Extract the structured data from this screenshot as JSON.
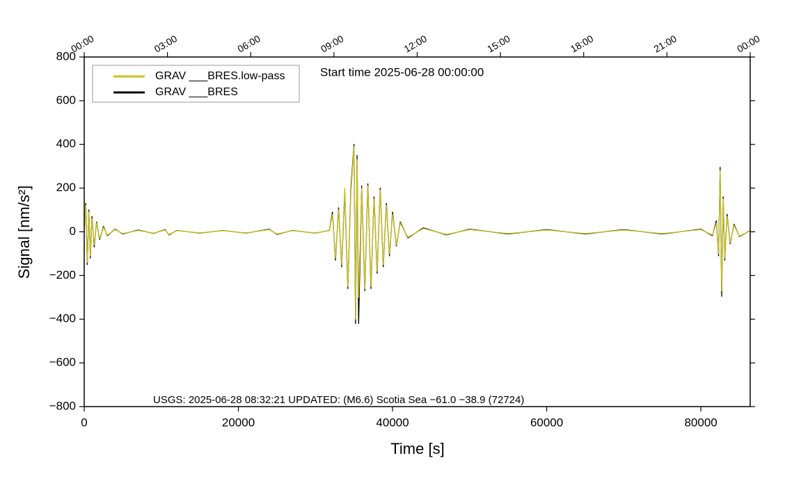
{
  "chart_data": {
    "type": "line",
    "ylabel": "Signal [nm/s²]",
    "xlabel": "Time [s]",
    "annotations": [
      "Start time 2025-06-28 00:00:00",
      "USGS: 2025-06-28 08:32:21 UPDATED: (M6.6) Scotia Sea −61.0 −38.9 (72724)"
    ],
    "xlim": [
      0,
      86400
    ],
    "ylim": [
      -800,
      800
    ],
    "xticks": [
      0,
      20000,
      40000,
      60000,
      80000
    ],
    "yticks": [
      {
        "value": -800,
        "label": "−800"
      },
      {
        "value": -600,
        "label": "−600"
      },
      {
        "value": -400,
        "label": "−400"
      },
      {
        "value": -200,
        "label": "−200"
      },
      0,
      200,
      400,
      600,
      800
    ],
    "top_ticks": [
      {
        "value": 0,
        "label": "00:00"
      },
      {
        "value": 10800,
        "label": "03:00"
      },
      {
        "value": 21600,
        "label": "06:00"
      },
      {
        "value": 32400,
        "label": "09:00"
      },
      {
        "value": 43200,
        "label": "12:00"
      },
      {
        "value": 54000,
        "label": "15:00"
      },
      {
        "value": 64800,
        "label": "18:00"
      },
      {
        "value": 75600,
        "label": "21:00"
      },
      {
        "value": 86400,
        "label": "00:00"
      }
    ],
    "legend": "upper left",
    "x": [
      0,
      200,
      400,
      600,
      800,
      1000,
      1300,
      1600,
      2000,
      2500,
      3000,
      4000,
      5000,
      7000,
      9000,
      10500,
      11000,
      12000,
      15000,
      18000,
      21000,
      24000,
      25000,
      27000,
      30000,
      31800,
      32200,
      32600,
      33000,
      33400,
      33800,
      34200,
      34600,
      35000,
      35200,
      35400,
      35600,
      36000,
      36400,
      36800,
      37200,
      37600,
      38000,
      38400,
      38800,
      39200,
      39600,
      40000,
      40500,
      41000,
      42000,
      44000,
      47000,
      50000,
      55000,
      60000,
      65000,
      70000,
      75000,
      80000,
      81500,
      82000,
      82300,
      82500,
      82700,
      82900,
      83100,
      83400,
      83800,
      84300,
      85000,
      86400
    ],
    "series": [
      {
        "name": "GRAV ___BRES.low-pass",
        "color": "#c9c21c",
        "values": [
          0,
          120,
          -140,
          90,
          -110,
          60,
          -60,
          40,
          -30,
          20,
          -15,
          10,
          -8,
          6,
          -6,
          8,
          -12,
          5,
          -5,
          5,
          -5,
          10,
          -10,
          5,
          -5,
          5,
          80,
          -120,
          100,
          -150,
          200,
          -250,
          180,
          390,
          -400,
          330,
          -300,
          200,
          -260,
          210,
          -250,
          150,
          -180,
          190,
          -150,
          120,
          -100,
          80,
          -60,
          40,
          -25,
          15,
          -12,
          10,
          -8,
          8,
          -8,
          8,
          -8,
          10,
          -15,
          40,
          -100,
          280,
          -270,
          150,
          -120,
          70,
          -50,
          30,
          -20,
          5
        ]
      },
      {
        "name": "GRAV ___BRES",
        "color": "#000000",
        "values": [
          0,
          130,
          -150,
          100,
          -120,
          70,
          -70,
          45,
          -35,
          25,
          -18,
          12,
          -10,
          8,
          -7,
          10,
          -14,
          6,
          -6,
          6,
          -6,
          12,
          -12,
          6,
          -6,
          6,
          90,
          -130,
          110,
          -160,
          190,
          -260,
          200,
          400,
          -420,
          350,
          -420,
          210,
          -270,
          220,
          -260,
          160,
          -190,
          200,
          -160,
          130,
          -110,
          90,
          -65,
          45,
          -28,
          18,
          -14,
          12,
          -10,
          10,
          -10,
          10,
          -10,
          12,
          -18,
          50,
          -110,
          295,
          -295,
          160,
          -130,
          80,
          -55,
          35,
          -22,
          6
        ]
      }
    ]
  }
}
